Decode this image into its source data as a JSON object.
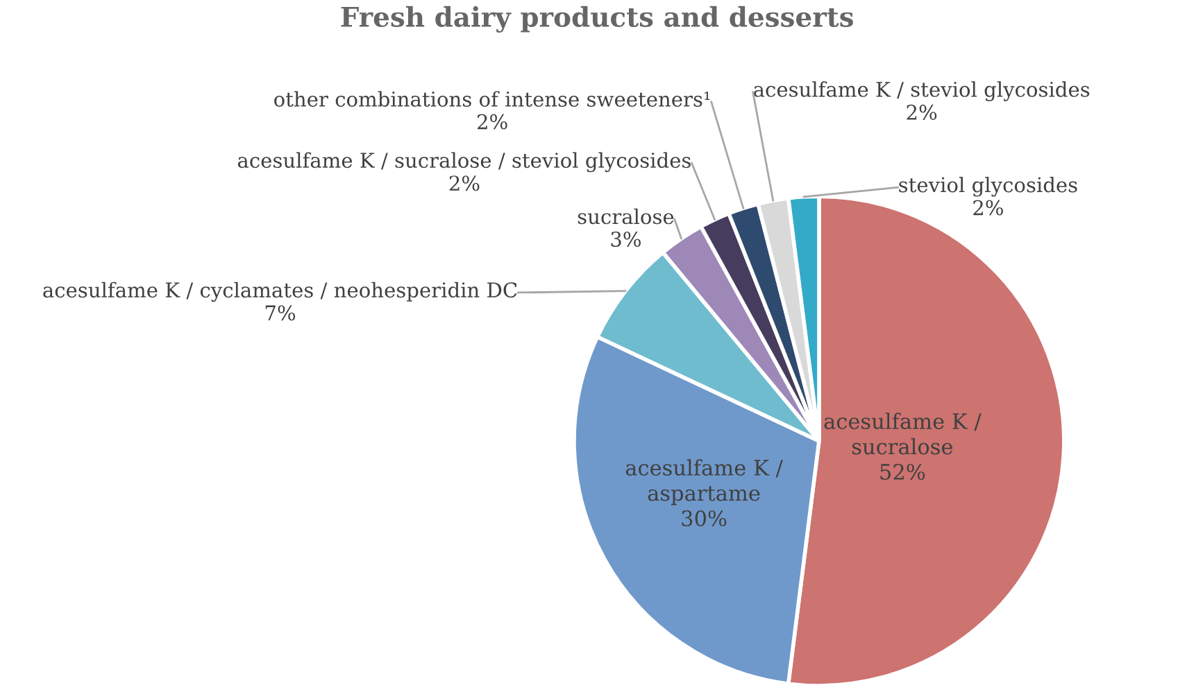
{
  "chart_data": {
    "type": "pie",
    "title": "Fresh dairy products and desserts",
    "categories": [
      "acesulfame K / sucralose",
      "acesulfame K / aspartame",
      "acesulfame K / cyclamates / neohesperidin DC",
      "sucralose",
      "acesulfame K / sucralose / steviol glycosides",
      "other combinations of intense sweeteners¹",
      "acesulfame K / steviol glycosides",
      "steviol glycosides"
    ],
    "values": [
      52,
      30,
      7,
      3,
      2,
      2,
      2,
      2
    ],
    "value_labels": [
      "52%",
      "30%",
      "7%",
      "3%",
      "2%",
      "2%",
      "2%",
      "2%"
    ],
    "colors": [
      "#cd7370",
      "#7099cb",
      "#6fbccf",
      "#9e88b8",
      "#463d5e",
      "#2e4a6e",
      "#d9d9d9",
      "#34aac9"
    ],
    "legend": false
  }
}
